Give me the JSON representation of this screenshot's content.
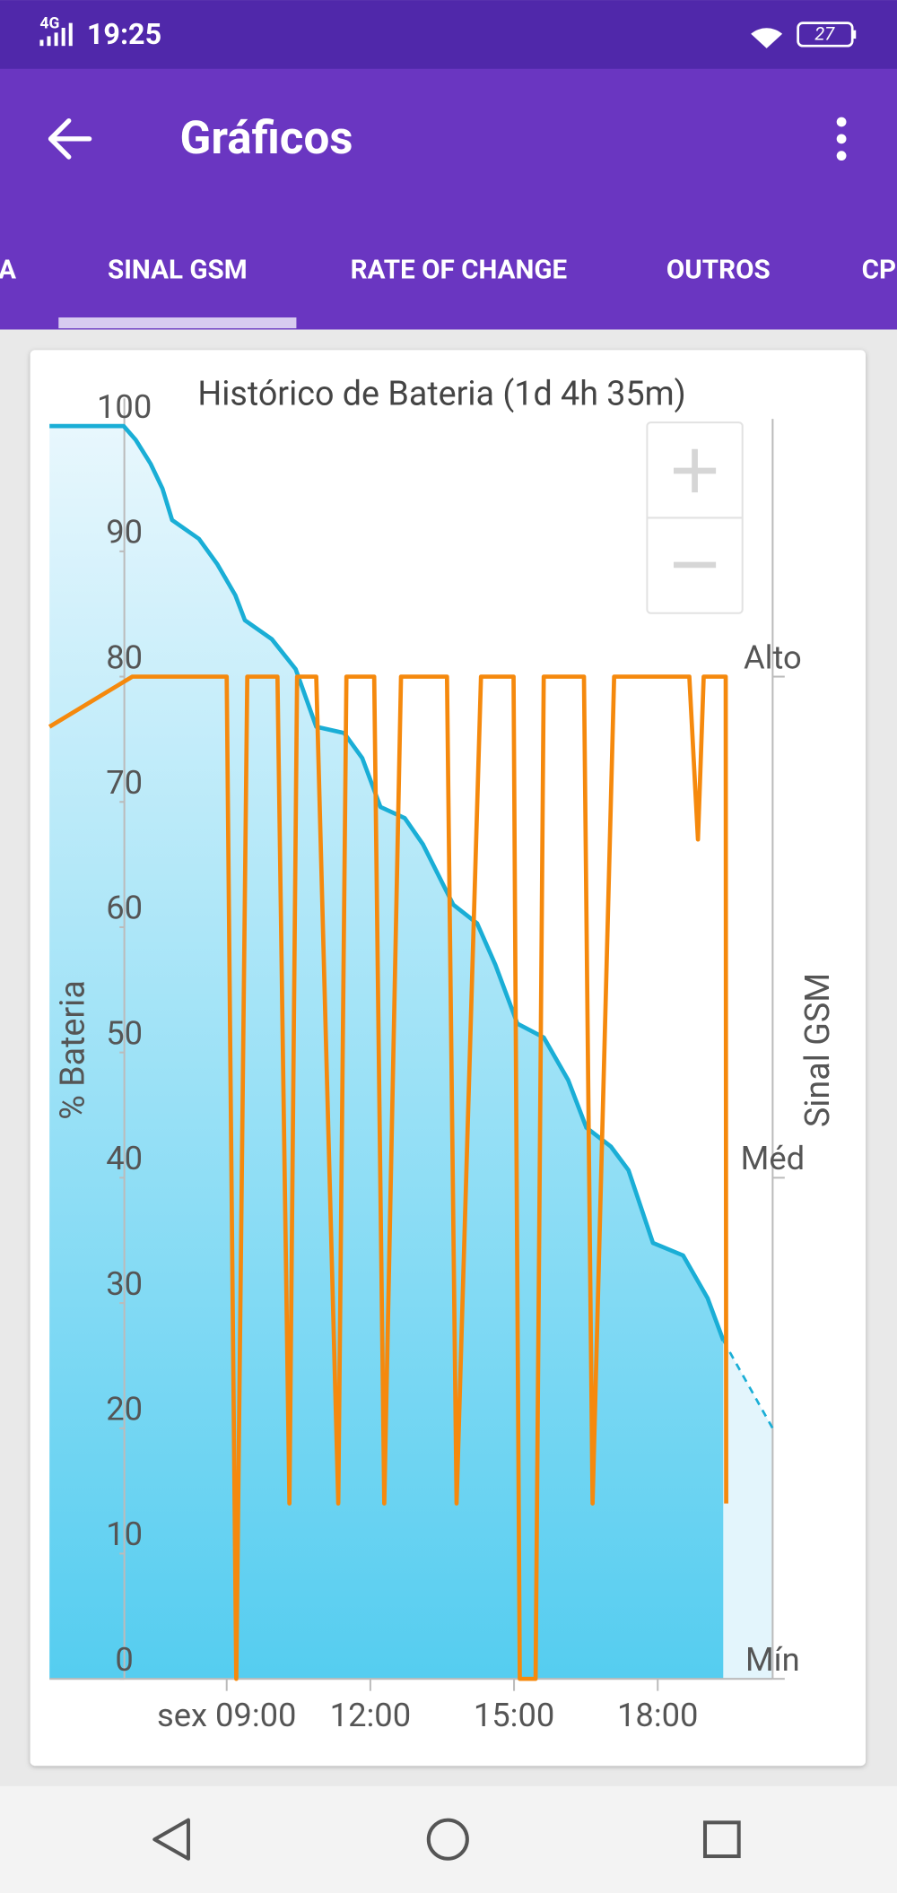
{
  "status_bar": {
    "network": "4G",
    "time": "19:25",
    "battery": "27"
  },
  "app_bar": {
    "title": "Gráficos"
  },
  "tabs": {
    "items": [
      "A",
      "SINAL GSM",
      "RATE OF CHANGE",
      "OUTROS",
      "CP"
    ],
    "selected": 1
  },
  "chart_data": {
    "type": "line",
    "title": "Histórico de Bateria (1d 4h 35m)",
    "y_label": "% Bateria",
    "y2_label": "Sinal GSM",
    "xlim": [
      5.3,
      20.4
    ],
    "xticks": [
      {
        "value": 9,
        "label": "sex 09:00"
      },
      {
        "value": 12,
        "label": "12:00"
      },
      {
        "value": 15,
        "label": "15:00"
      },
      {
        "value": 18,
        "label": "18:00"
      }
    ],
    "ylim": [
      0,
      100
    ],
    "yticks": [
      0,
      10,
      20,
      30,
      40,
      50,
      60,
      70,
      80,
      90,
      100
    ],
    "y2lim": [
      0,
      100
    ],
    "y2ticks": [
      {
        "value": 0,
        "label": "Mín"
      },
      {
        "value": 40,
        "label": "Méd"
      },
      {
        "value": 80,
        "label": "Alto"
      }
    ],
    "series": [
      {
        "color": "#1aaed6",
        "fill": true,
        "x": [
          5.3,
          6.85,
          7.1,
          7.41,
          7.66,
          7.86,
          8.42,
          8.8,
          9.18,
          9.38,
          9.94,
          10.44,
          10.87,
          11.45,
          11.83,
          12.21,
          12.72,
          13.1,
          13.73,
          14.23,
          14.61,
          15.07,
          15.62,
          16.13,
          16.51,
          17.02,
          17.39,
          17.9,
          18.53,
          19.04,
          19.37
        ],
        "values": [
          100,
          100,
          98.9,
          97,
          95,
          92.5,
          91,
          89,
          86.5,
          84.5,
          83,
          80.6,
          76,
          75.5,
          73.5,
          69.6,
          68.7,
          66.6,
          61.8,
          60.3,
          57,
          52.3,
          51.2,
          47.8,
          44,
          42.5,
          40.6,
          34.8,
          33.8,
          30.4,
          27
        ]
      },
      {
        "color": "#1aaed6",
        "dashed": true,
        "x": [
          19.37,
          20.4
        ],
        "values": [
          27,
          20
        ]
      },
      {
        "color": "#f5890d",
        "axis": "y2",
        "x": [
          5.3,
          7.03,
          9.0,
          9.2,
          9.43,
          10.06,
          10.31,
          10.47,
          10.87,
          11.33,
          11.5,
          12.08,
          12.29,
          12.64,
          13.6,
          13.8,
          14.31,
          14.99,
          15.12,
          15.45,
          15.62,
          16.46,
          16.64,
          17.09,
          18.66,
          18.84,
          18.96,
          19.42,
          19.43
        ],
        "values": [
          76,
          80,
          80,
          0,
          80,
          80,
          14,
          80,
          80,
          14,
          80,
          80,
          14,
          80,
          80,
          14,
          80,
          80,
          0,
          0,
          80,
          80,
          14,
          80,
          80,
          67,
          80,
          80,
          14
        ]
      }
    ]
  }
}
